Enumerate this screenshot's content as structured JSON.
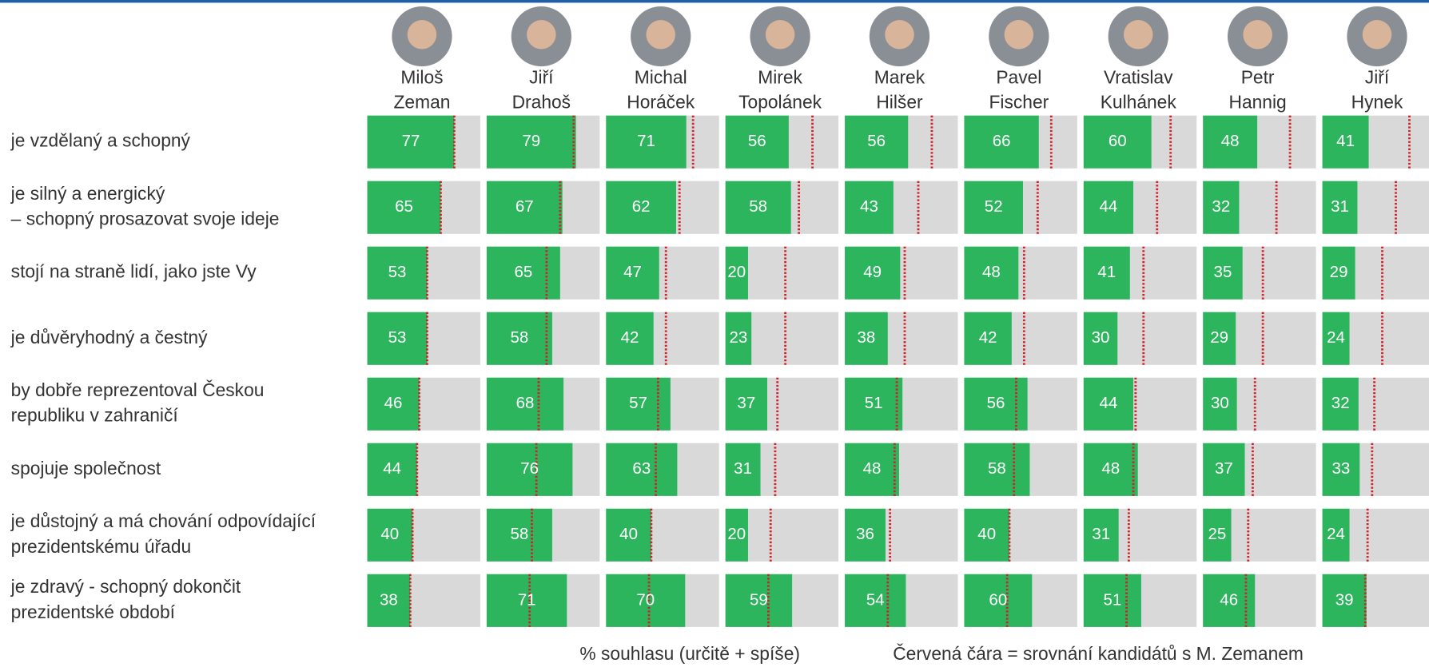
{
  "chart_data": {
    "type": "bar",
    "categories": [
      "je vzdělaný a schopný",
      "je silný a energický\n– schopný prosazovat svoje ideje",
      "stojí na straně lidí, jako jste Vy",
      "je důvěryhodný a čestný",
      "by dobře reprezentoval Českou\nrepubliku v zahraničí",
      "spojuje společnost",
      "je důstojný a má chování odpovídající\nprezidentskému úřadu",
      "je zdravý - schopný dokončit\nprezidentské období"
    ],
    "series": [
      {
        "name": "Miloš Zeman",
        "color": "#2db55d",
        "values": [
          77,
          65,
          53,
          53,
          46,
          44,
          40,
          38
        ]
      },
      {
        "name": "Jiří Drahoš",
        "color": "#2db55d",
        "values": [
          79,
          67,
          65,
          58,
          68,
          76,
          58,
          71
        ]
      },
      {
        "name": "Michal Horáček",
        "color": "#2db55d",
        "values": [
          71,
          62,
          47,
          42,
          57,
          63,
          40,
          70
        ]
      },
      {
        "name": "Mirek Topolánek",
        "color": "#2db55d",
        "values": [
          56,
          58,
          20,
          23,
          37,
          31,
          20,
          59
        ]
      },
      {
        "name": "Marek Hilšer",
        "color": "#2db55d",
        "values": [
          56,
          43,
          49,
          38,
          51,
          48,
          36,
          54
        ]
      },
      {
        "name": "Pavel Fischer",
        "color": "#2db55d",
        "values": [
          66,
          52,
          48,
          42,
          56,
          58,
          40,
          60
        ]
      },
      {
        "name": "Vratislav Kulhánek",
        "color": "#2db55d",
        "values": [
          60,
          44,
          41,
          30,
          44,
          48,
          31,
          51
        ]
      },
      {
        "name": "Petr Hannig",
        "color": "#2db55d",
        "values": [
          48,
          32,
          35,
          29,
          30,
          37,
          25,
          46
        ]
      },
      {
        "name": "Jiří Hynek",
        "color": "#2db55d",
        "values": [
          41,
          31,
          29,
          24,
          32,
          33,
          24,
          39
        ]
      }
    ],
    "xlim": [
      0,
      100
    ],
    "background_color": "#d9d9d9",
    "reference_color": "#d0202a",
    "xlabel": "% souhlasu (určitě + spíše)",
    "annotation": "Červená čára = srovnání kandidátů s M. Zemanem"
  }
}
